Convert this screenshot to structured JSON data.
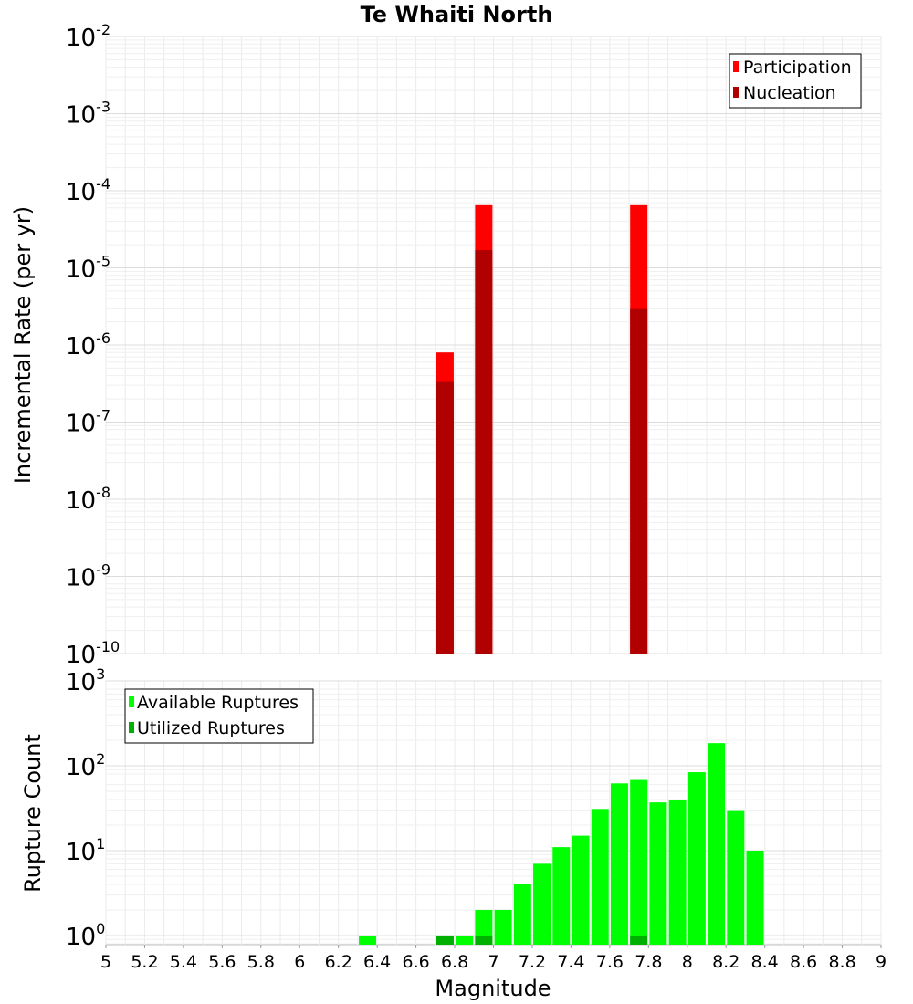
{
  "chart_data": [
    {
      "type": "bar",
      "title": "Te Whaiti North",
      "ylabel": "Incremental Rate (per yr)",
      "xlabel": "",
      "yscale": "log",
      "ylim": [
        1e-10,
        0.01
      ],
      "xlim": [
        5,
        9
      ],
      "y_ticks": [
        {
          "base": "10",
          "exp": "-2"
        },
        {
          "base": "10",
          "exp": "-3"
        },
        {
          "base": "10",
          "exp": "-4"
        },
        {
          "base": "10",
          "exp": "-5"
        },
        {
          "base": "10",
          "exp": "-6"
        },
        {
          "base": "10",
          "exp": "-7"
        },
        {
          "base": "10",
          "exp": "-8"
        },
        {
          "base": "10",
          "exp": "-9"
        },
        {
          "base": "10",
          "exp": "-10"
        }
      ],
      "legend_position": "top-right",
      "series": [
        {
          "name": "Participation",
          "color": "#ff0000",
          "x": [
            6.75,
            6.95,
            7.75
          ],
          "values": [
            8e-07,
            6.5e-05,
            6.5e-05
          ]
        },
        {
          "name": "Nucleation",
          "color": "#b00000",
          "x": [
            6.75,
            6.95,
            7.75
          ],
          "values": [
            3.4e-07,
            1.7e-05,
            3e-06
          ]
        }
      ]
    },
    {
      "type": "bar",
      "title": "",
      "ylabel": "Rupture Count",
      "xlabel": "Magnitude",
      "yscale": "log",
      "ylim": [
        0.78,
        1000
      ],
      "xlim": [
        5,
        9
      ],
      "y_ticks": [
        {
          "base": "10",
          "exp": "3"
        },
        {
          "base": "10",
          "exp": "2"
        },
        {
          "base": "10",
          "exp": "1"
        },
        {
          "base": "10",
          "exp": "0"
        }
      ],
      "x_ticks": [
        "5",
        "5.2",
        "5.4",
        "5.6",
        "5.8",
        "6",
        "6.2",
        "6.4",
        "6.6",
        "6.8",
        "7",
        "7.2",
        "7.4",
        "7.6",
        "7.8",
        "8",
        "8.2",
        "8.4",
        "8.6",
        "8.8",
        "9"
      ],
      "legend_position": "top-left",
      "series": [
        {
          "name": "Available Ruptures",
          "color": "#00ff00",
          "x": [
            6.35,
            6.75,
            6.85,
            6.95,
            7.05,
            7.15,
            7.25,
            7.35,
            7.45,
            7.55,
            7.65,
            7.75,
            7.85,
            7.95,
            8.05,
            8.15,
            8.25,
            8.35
          ],
          "values": [
            1,
            1,
            1,
            2,
            2,
            4,
            7,
            11,
            15,
            31,
            62,
            68,
            37,
            39,
            84,
            185,
            30,
            10
          ]
        },
        {
          "name": "Utilized Ruptures",
          "color": "#00b000",
          "x": [
            6.75,
            6.95,
            7.75
          ],
          "values": [
            1,
            1,
            1
          ]
        }
      ]
    }
  ]
}
